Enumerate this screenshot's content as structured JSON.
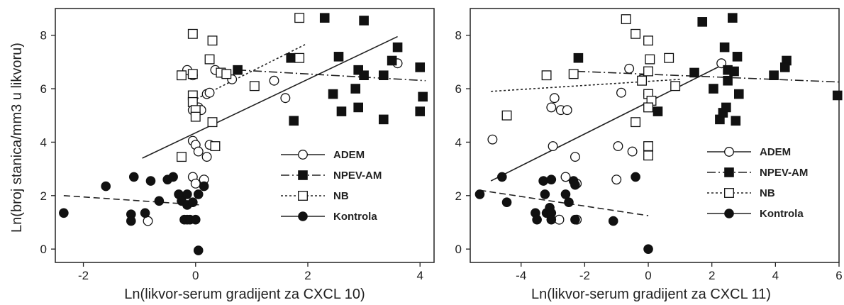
{
  "chart_data": {
    "type": "scatter",
    "shared_ylabel": "Ln(broj stanica/mm3 u likvoru)",
    "legend": [
      {
        "name": "ADEM",
        "marker": "open-circle",
        "line": "solid"
      },
      {
        "name": "NPEV-AM",
        "marker": "filled-square",
        "line": "dash-dot"
      },
      {
        "name": "NB",
        "marker": "open-square",
        "line": "dotted"
      },
      {
        "name": "Kontrola",
        "marker": "filled-circle",
        "line": "solid"
      }
    ],
    "panels": [
      {
        "xlabel": "Ln(likvor-serum gradijent za CXCL 10)",
        "xlim": [
          -2.5,
          4.25
        ],
        "ylim": [
          -0.5,
          9.0
        ],
        "xticks": [
          -2,
          0,
          2,
          4
        ],
        "xtick_labels": [
          "-2",
          "0",
          "2",
          "4"
        ],
        "yticks": [
          0,
          2,
          4,
          6,
          8
        ],
        "ytick_labels": [
          "0",
          "2",
          "4",
          "6",
          "8"
        ],
        "series": [
          {
            "name": "ADEM",
            "points": [
              [
                -0.15,
                6.7
              ],
              [
                -0.05,
                6.5
              ],
              [
                0.05,
                5.3
              ],
              [
                -0.05,
                5.2
              ],
              [
                0.1,
                5.2
              ],
              [
                0.2,
                5.8
              ],
              [
                0.25,
                5.85
              ],
              [
                0.35,
                6.7
              ],
              [
                0.45,
                6.6
              ],
              [
                0.65,
                6.35
              ],
              [
                1.4,
                6.3
              ],
              [
                1.6,
                5.65
              ],
              [
                3.6,
                6.95
              ],
              [
                -0.05,
                4.05
              ],
              [
                0.0,
                3.9
              ],
              [
                0.05,
                3.65
              ],
              [
                0.2,
                3.45
              ],
              [
                0.25,
                3.9
              ],
              [
                -0.05,
                2.7
              ],
              [
                0.0,
                2.45
              ],
              [
                0.15,
                2.6
              ],
              [
                -0.85,
                1.05
              ]
            ]
          },
          {
            "name": "NPEV-AM",
            "points": [
              [
                2.3,
                8.65
              ],
              [
                3.0,
                8.55
              ],
              [
                0.75,
                6.7
              ],
              [
                1.7,
                7.15
              ],
              [
                2.55,
                7.2
              ],
              [
                3.5,
                7.05
              ],
              [
                3.6,
                7.55
              ],
              [
                4.0,
                6.8
              ],
              [
                2.9,
                6.7
              ],
              [
                3.0,
                6.5
              ],
              [
                3.35,
                6.5
              ],
              [
                2.85,
                6.0
              ],
              [
                2.45,
                5.8
              ],
              [
                4.05,
                5.7
              ],
              [
                1.75,
                4.8
              ],
              [
                2.6,
                5.15
              ],
              [
                2.9,
                5.3
              ],
              [
                3.35,
                4.85
              ],
              [
                4.0,
                5.15
              ]
            ]
          },
          {
            "name": "NB",
            "points": [
              [
                -0.05,
                8.05
              ],
              [
                0.3,
                7.8
              ],
              [
                1.85,
                8.65
              ],
              [
                0.25,
                7.1
              ],
              [
                1.85,
                7.15
              ],
              [
                -0.25,
                6.5
              ],
              [
                -0.05,
                6.55
              ],
              [
                0.45,
                6.6
              ],
              [
                0.55,
                6.55
              ],
              [
                1.05,
                6.1
              ],
              [
                -0.05,
                5.75
              ],
              [
                -0.05,
                5.5
              ],
              [
                0.0,
                5.2
              ],
              [
                0.0,
                4.95
              ],
              [
                0.3,
                4.75
              ],
              [
                -0.25,
                3.45
              ],
              [
                0.35,
                3.85
              ]
            ]
          },
          {
            "name": "Kontrola",
            "points": [
              [
                -2.35,
                1.35
              ],
              [
                -1.6,
                2.35
              ],
              [
                -1.1,
                2.7
              ],
              [
                -0.9,
                1.35
              ],
              [
                -0.8,
                2.55
              ],
              [
                -0.65,
                1.8
              ],
              [
                -0.5,
                2.6
              ],
              [
                -0.4,
                2.7
              ],
              [
                -0.3,
                2.05
              ],
              [
                -0.25,
                1.8
              ],
              [
                -0.15,
                1.65
              ],
              [
                -0.15,
                2.05
              ],
              [
                -0.05,
                1.75
              ],
              [
                0.05,
                2.05
              ],
              [
                -0.15,
                1.1
              ],
              [
                0.15,
                2.35
              ],
              [
                -1.15,
                1.3
              ],
              [
                -1.15,
                1.05
              ],
              [
                -0.2,
                1.1
              ],
              [
                -0.1,
                1.1
              ],
              [
                0.0,
                1.1
              ],
              [
                0.05,
                -0.05
              ]
            ]
          }
        ],
        "fit_lines": [
          {
            "name": "ADEM",
            "x": [
              -0.95,
              3.6
            ],
            "y": [
              3.4,
              7.95
            ]
          },
          {
            "name": "NPEV-AM",
            "x": [
              0.75,
              4.1
            ],
            "y": [
              6.7,
              6.3
            ]
          },
          {
            "name": "NB",
            "x": [
              -0.05,
              1.95
            ],
            "y": [
              5.55,
              7.65
            ]
          },
          {
            "name": "Kontrola",
            "x": [
              -2.35,
              0.1
            ],
            "y": [
              2.0,
              1.65
            ]
          }
        ]
      },
      {
        "xlabel": "Ln(likvor-serum gradijent za CXCL 11)",
        "xlim": [
          -5.6,
          6.0
        ],
        "ylim": [
          -0.5,
          9.0
        ],
        "xticks": [
          -4,
          -2,
          0,
          2,
          4,
          6
        ],
        "xtick_labels": [
          "-4",
          "-2",
          "0",
          "2",
          "4",
          "6"
        ],
        "yticks": [
          0,
          2,
          4,
          6,
          8
        ],
        "ytick_labels": [
          "0",
          "2",
          "4",
          "6",
          "8"
        ],
        "series": [
          {
            "name": "ADEM",
            "points": [
              [
                -4.9,
                4.1
              ],
              [
                -3.05,
                5.3
              ],
              [
                -2.95,
                5.65
              ],
              [
                -2.75,
                5.2
              ],
              [
                -2.55,
                5.2
              ],
              [
                -0.6,
                6.75
              ],
              [
                -0.2,
                6.35
              ],
              [
                -0.85,
                5.85
              ],
              [
                2.3,
                6.95
              ],
              [
                0.0,
                5.8
              ],
              [
                -3.0,
                3.85
              ],
              [
                -2.3,
                3.45
              ],
              [
                -0.95,
                3.85
              ],
              [
                -0.5,
                3.65
              ],
              [
                -2.6,
                2.7
              ],
              [
                -2.25,
                2.45
              ],
              [
                -1.0,
                2.6
              ],
              [
                -2.8,
                1.1
              ],
              [
                -2.25,
                1.1
              ]
            ]
          },
          {
            "name": "NPEV-AM",
            "points": [
              [
                1.7,
                8.5
              ],
              [
                2.65,
                8.65
              ],
              [
                -2.2,
                7.15
              ],
              [
                2.4,
                7.55
              ],
              [
                2.8,
                7.2
              ],
              [
                4.35,
                7.05
              ],
              [
                1.45,
                6.6
              ],
              [
                2.5,
                6.7
              ],
              [
                2.7,
                6.65
              ],
              [
                2.5,
                6.3
              ],
              [
                3.95,
                6.5
              ],
              [
                4.3,
                6.8
              ],
              [
                2.05,
                6.0
              ],
              [
                2.85,
                5.8
              ],
              [
                5.95,
                5.75
              ],
              [
                0.3,
                5.15
              ],
              [
                2.25,
                4.85
              ],
              [
                2.75,
                4.8
              ],
              [
                2.35,
                5.1
              ],
              [
                2.45,
                5.3
              ]
            ]
          },
          {
            "name": "NB",
            "points": [
              [
                -0.7,
                8.6
              ],
              [
                -0.4,
                8.05
              ],
              [
                0.0,
                7.8
              ],
              [
                0.05,
                7.1
              ],
              [
                0.65,
                7.15
              ],
              [
                -3.2,
                6.5
              ],
              [
                -2.35,
                6.55
              ],
              [
                -0.2,
                6.3
              ],
              [
                0.0,
                6.65
              ],
              [
                0.85,
                6.1
              ],
              [
                0.0,
                5.8
              ],
              [
                0.1,
                5.55
              ],
              [
                0.0,
                5.3
              ],
              [
                -4.45,
                5.0
              ],
              [
                -0.4,
                4.75
              ],
              [
                0.0,
                3.85
              ],
              [
                0.0,
                3.5
              ]
            ]
          },
          {
            "name": "Kontrola",
            "points": [
              [
                -5.3,
                2.05
              ],
              [
                -4.6,
                2.7
              ],
              [
                -4.45,
                1.75
              ],
              [
                -3.55,
                1.35
              ],
              [
                -3.5,
                1.1
              ],
              [
                -3.3,
                2.55
              ],
              [
                -3.25,
                2.05
              ],
              [
                -3.2,
                1.35
              ],
              [
                -3.1,
                1.55
              ],
              [
                -3.05,
                1.35
              ],
              [
                -3.05,
                2.6
              ],
              [
                -3.05,
                1.1
              ],
              [
                -2.6,
                2.05
              ],
              [
                -2.5,
                1.75
              ],
              [
                -2.35,
                2.55
              ],
              [
                -2.3,
                1.1
              ],
              [
                -2.3,
                2.4
              ],
              [
                -1.1,
                1.05
              ],
              [
                -0.4,
                2.7
              ],
              [
                0.0,
                0.0
              ]
            ]
          }
        ],
        "fit_lines": [
          {
            "name": "ADEM",
            "x": [
              -4.95,
              2.35
            ],
            "y": [
              2.55,
              6.9
            ]
          },
          {
            "name": "NPEV-AM",
            "x": [
              -2.25,
              6.0
            ],
            "y": [
              6.65,
              6.25
            ]
          },
          {
            "name": "NB",
            "x": [
              -4.95,
              1.0
            ],
            "y": [
              5.9,
              6.35
            ]
          },
          {
            "name": "Kontrola",
            "x": [
              -5.3,
              0.0
            ],
            "y": [
              2.2,
              1.25
            ]
          }
        ]
      }
    ]
  }
}
